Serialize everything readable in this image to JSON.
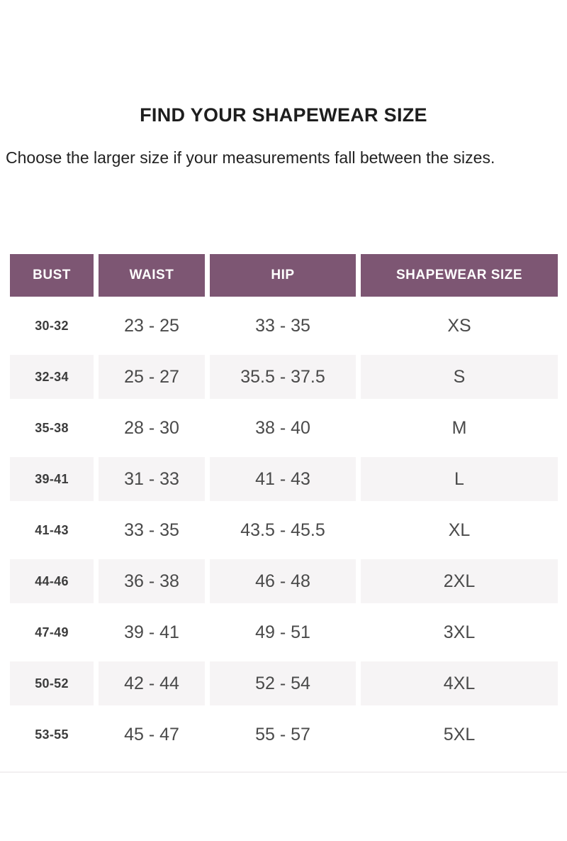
{
  "page": {
    "title": "FIND YOUR SHAPEWEAR SIZE",
    "subtitle": "Choose the larger size if your measurements fall between the sizes."
  },
  "colors": {
    "header_bg": "#7d5673",
    "header_text": "#ffffff",
    "row_alt_bg": "#f6f4f5",
    "bust_text": "#3c3c3c",
    "body_text": "#4a4a4a"
  },
  "size_chart": {
    "columns": [
      "BUST",
      "WAIST",
      "HIP",
      "SHAPEWEAR SIZE"
    ],
    "rows": [
      {
        "bust": "30-32",
        "waist": "23 - 25",
        "hip": "33 - 35",
        "size": "XS"
      },
      {
        "bust": "32-34",
        "waist": "25 - 27",
        "hip": "35.5 - 37.5",
        "size": "S"
      },
      {
        "bust": "35-38",
        "waist": "28 - 30",
        "hip": "38 - 40",
        "size": "M"
      },
      {
        "bust": "39-41",
        "waist": "31 - 33",
        "hip": "41 - 43",
        "size": "L"
      },
      {
        "bust": "41-43",
        "waist": "33 - 35",
        "hip": "43.5 - 45.5",
        "size": "XL"
      },
      {
        "bust": "44-46",
        "waist": "36 - 38",
        "hip": "46 - 48",
        "size": "2XL"
      },
      {
        "bust": "47-49",
        "waist": "39 - 41",
        "hip": "49 - 51",
        "size": "3XL"
      },
      {
        "bust": "50-52",
        "waist": "42 - 44",
        "hip": "52 - 54",
        "size": "4XL"
      },
      {
        "bust": "53-55",
        "waist": "45 - 47",
        "hip": "55 - 57",
        "size": "5XL"
      }
    ]
  }
}
